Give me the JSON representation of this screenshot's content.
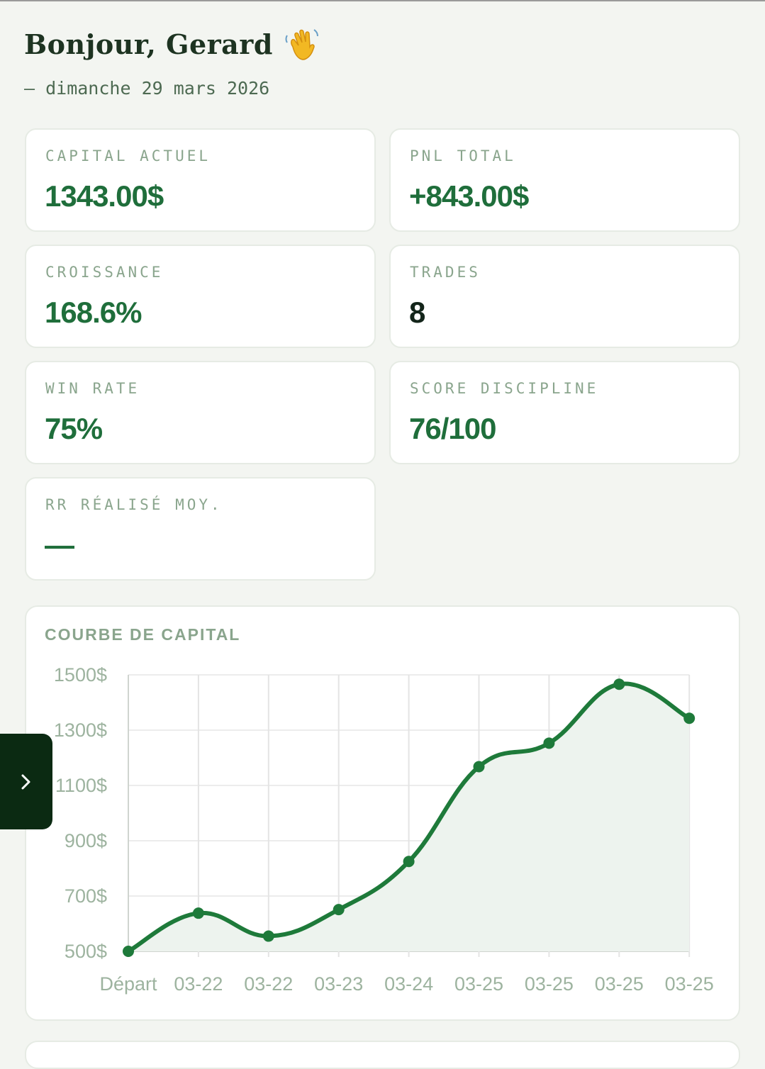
{
  "header": {
    "greeting": "Bonjour, Gerard",
    "greeting_icon": "waving-hand-icon",
    "date": "— dimanche 29 mars 2026"
  },
  "stats": [
    {
      "label": "CAPITAL ACTUEL",
      "value": "1343.00$",
      "color": "#1f6e3b"
    },
    {
      "label": "PNL TOTAL",
      "value": "+843.00$",
      "color": "#1f6e3b"
    },
    {
      "label": "CROISSANCE",
      "value": "168.6%",
      "color": "#1f6e3b"
    },
    {
      "label": "TRADES",
      "value": "8",
      "color": "#13251a"
    },
    {
      "label": "WIN RATE",
      "value": "75%",
      "color": "#1f6e3b"
    },
    {
      "label": "SCORE DISCIPLINE",
      "value": "76/100",
      "color": "#1f6e3b"
    },
    {
      "label": "RR RÉALISÉ MOY.",
      "value": "—",
      "color": "#1f6e3b"
    }
  ],
  "sidebar_toggle": {
    "icon": "chevron-right-icon",
    "color": "#0b2a12"
  },
  "chart_data": {
    "type": "line",
    "title": "COURBE DE CAPITAL",
    "categories": [
      "Départ",
      "03-22",
      "03-22",
      "03-23",
      "03-24",
      "03-25",
      "03-25",
      "03-25",
      "03-25"
    ],
    "values": [
      500,
      638,
      555,
      651,
      825,
      1168,
      1253,
      1466,
      1343
    ],
    "y_ticks": [
      "1500$",
      "1300$",
      "1100$",
      "900$",
      "700$",
      "500$"
    ],
    "ylim": [
      500,
      1500
    ],
    "grid": true,
    "fill_area": true,
    "line_color": "#1e7a3a",
    "fill_color": "#edf3ee"
  }
}
